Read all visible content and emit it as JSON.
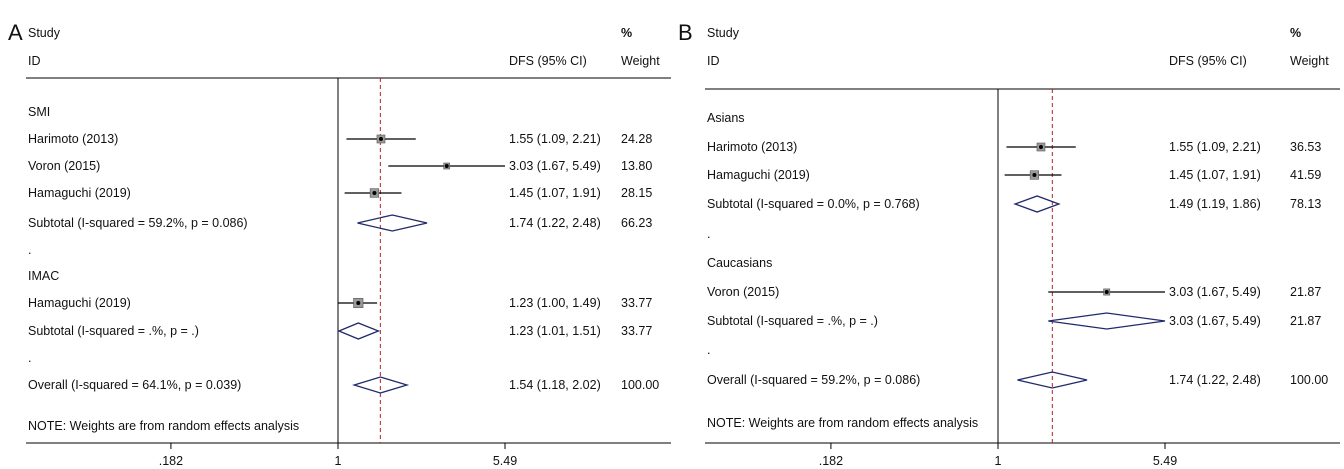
{
  "chart_data": [
    {
      "type": "forest",
      "panel_label": "A",
      "header": {
        "study": "Study",
        "id": "ID",
        "effect": "DFS (95% CI)",
        "pct": "%",
        "weight": "Weight"
      },
      "scale": "log",
      "ticks": [
        ".182",
        "1",
        "5.49"
      ],
      "null_value": 1,
      "overall_estimate": 1.54,
      "rows": [
        {
          "kind": "group",
          "label": "SMI"
        },
        {
          "kind": "study",
          "label": "Harimoto (2013)",
          "est": 1.55,
          "lo": 1.09,
          "hi": 2.21,
          "ci_text": "1.55 (1.09, 2.21)",
          "weight": "24.28"
        },
        {
          "kind": "study",
          "label": "Voron (2015)",
          "est": 3.03,
          "lo": 1.67,
          "hi": 5.49,
          "ci_text": "3.03 (1.67, 5.49)",
          "weight": "13.80"
        },
        {
          "kind": "study",
          "label": "Hamaguchi (2019)",
          "est": 1.45,
          "lo": 1.07,
          "hi": 1.91,
          "ci_text": "1.45 (1.07, 1.91)",
          "weight": "28.15"
        },
        {
          "kind": "subtotal",
          "label": "Subtotal  (I-squared = 59.2%, p = 0.086)",
          "est": 1.74,
          "lo": 1.22,
          "hi": 2.48,
          "ci_text": "1.74 (1.22, 2.48)",
          "weight": "66.23"
        },
        {
          "kind": "spacer",
          "label": "."
        },
        {
          "kind": "group",
          "label": "IMAC"
        },
        {
          "kind": "study",
          "label": "Hamaguchi (2019)",
          "est": 1.23,
          "lo": 1.0,
          "hi": 1.49,
          "ci_text": "1.23 (1.00, 1.49)",
          "weight": "33.77"
        },
        {
          "kind": "subtotal",
          "label": "Subtotal  (I-squared = .%, p = .)",
          "est": 1.23,
          "lo": 1.01,
          "hi": 1.51,
          "ci_text": "1.23 (1.01, 1.51)",
          "weight": "33.77"
        },
        {
          "kind": "spacer",
          "label": "."
        },
        {
          "kind": "overall",
          "label": "Overall  (I-squared = 64.1%, p = 0.039)",
          "est": 1.54,
          "lo": 1.18,
          "hi": 2.02,
          "ci_text": "1.54 (1.18, 2.02)",
          "weight": "100.00"
        },
        {
          "kind": "note",
          "label": "NOTE: Weights are from random effects analysis"
        }
      ]
    },
    {
      "type": "forest",
      "panel_label": "B",
      "header": {
        "study": "Study",
        "id": "ID",
        "effect": "DFS (95% CI)",
        "pct": "%",
        "weight": "Weight"
      },
      "scale": "log",
      "ticks": [
        ".182",
        "1",
        "5.49"
      ],
      "null_value": 1,
      "overall_estimate": 1.74,
      "rows": [
        {
          "kind": "group",
          "label": "Asians"
        },
        {
          "kind": "study",
          "label": "Harimoto (2013)",
          "est": 1.55,
          "lo": 1.09,
          "hi": 2.21,
          "ci_text": "1.55 (1.09, 2.21)",
          "weight": "36.53"
        },
        {
          "kind": "study",
          "label": "Hamaguchi (2019)",
          "est": 1.45,
          "lo": 1.07,
          "hi": 1.91,
          "ci_text": "1.45 (1.07, 1.91)",
          "weight": "41.59"
        },
        {
          "kind": "subtotal",
          "label": "Subtotal  (I-squared = 0.0%, p = 0.768)",
          "est": 1.49,
          "lo": 1.19,
          "hi": 1.86,
          "ci_text": "1.49 (1.19, 1.86)",
          "weight": "78.13"
        },
        {
          "kind": "spacer",
          "label": "."
        },
        {
          "kind": "group",
          "label": "Caucasians"
        },
        {
          "kind": "study",
          "label": "Voron (2015)",
          "est": 3.03,
          "lo": 1.67,
          "hi": 5.49,
          "ci_text": "3.03 (1.67, 5.49)",
          "weight": "21.87"
        },
        {
          "kind": "subtotal",
          "label": "Subtotal  (I-squared = .%, p = .)",
          "est": 3.03,
          "lo": 1.67,
          "hi": 5.49,
          "ci_text": "3.03 (1.67, 5.49)",
          "weight": "21.87"
        },
        {
          "kind": "spacer",
          "label": "."
        },
        {
          "kind": "overall",
          "label": "Overall  (I-squared = 59.2%, p = 0.086)",
          "est": 1.74,
          "lo": 1.22,
          "hi": 2.48,
          "ci_text": "1.74 (1.22, 2.48)",
          "weight": "100.00"
        },
        {
          "kind": "note",
          "label": "NOTE: Weights are from random effects analysis"
        }
      ]
    }
  ],
  "colors": {
    "diamond": "#1f2a6b",
    "reference_line": "#b22222",
    "line": "#000000",
    "marker_box": "#9a9a9a"
  }
}
